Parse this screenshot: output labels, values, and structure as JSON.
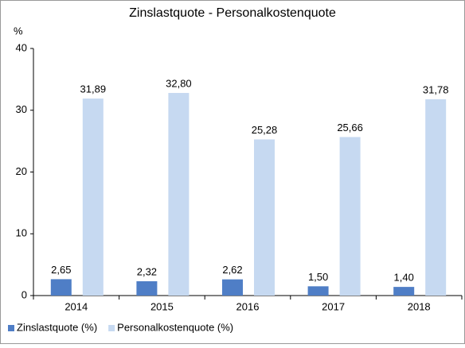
{
  "chart_data": {
    "type": "bar",
    "title": "Zinslastquote - Personalkostenquote",
    "y_label": "%",
    "categories": [
      "2014",
      "2015",
      "2016",
      "2017",
      "2018"
    ],
    "series": [
      {
        "name": "Zinslastquote (%)",
        "color": "#4f7ec6",
        "values": [
          2.65,
          2.32,
          2.62,
          1.5,
          1.4
        ],
        "value_labels": [
          "2,65",
          "2,32",
          "2,62",
          "1,50",
          "1,40"
        ]
      },
      {
        "name": "Personalkostenquote (%)",
        "color": "#c6d9f1",
        "values": [
          31.89,
          32.8,
          25.28,
          25.66,
          31.78
        ],
        "value_labels": [
          "31,89",
          "32,80",
          "25,28",
          "25,66",
          "31,78"
        ]
      }
    ],
    "ylim": [
      0,
      40
    ],
    "yticks": [
      0,
      10,
      20,
      30,
      40
    ],
    "grid": false,
    "legend": "bottom-left"
  }
}
